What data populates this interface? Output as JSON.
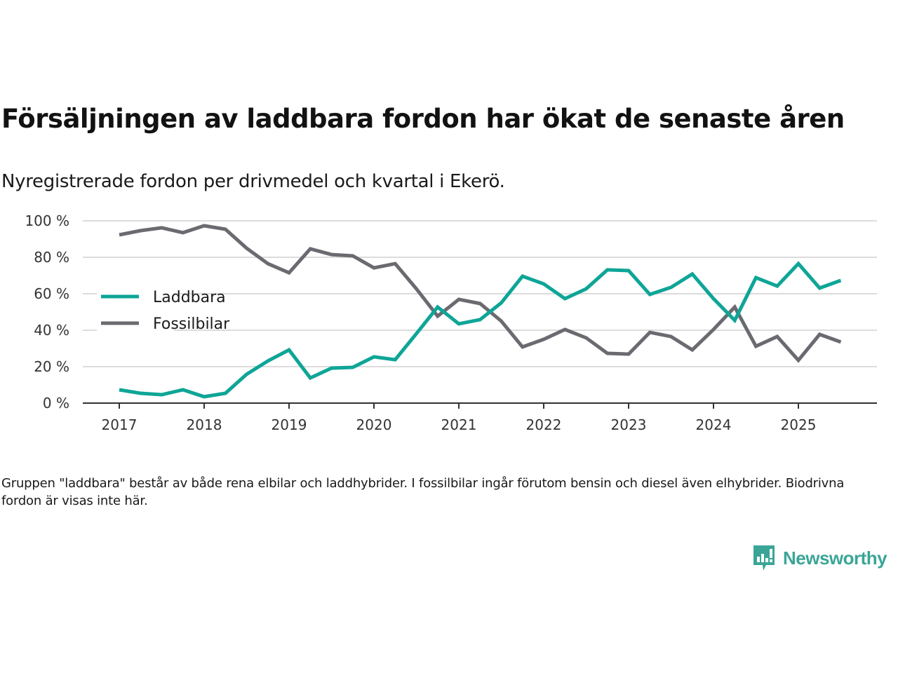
{
  "header": {
    "title": "Försäljningen av laddbara fordon har ökat de senaste åren",
    "subtitle": "Nyregistrerade fordon per drivmedel och kvartal i Ekerö."
  },
  "note": "Gruppen \"laddbara\" består av både rena elbilar och laddhybrider. I fossilbilar ingår förutom bensin och diesel även elhybrider. Biodrivna fordon är visas inte här.",
  "brand": {
    "name": "Newsworthy",
    "color": "#3aa597"
  },
  "chart_data": {
    "type": "line",
    "title": "Försäljningen av laddbara fordon har ökat de senaste åren",
    "subtitle": "Nyregistrerade fordon per drivmedel och kvartal i Ekerö.",
    "xlabel": "",
    "ylabel": "",
    "x_start": 2017.0,
    "x_step": 0.25,
    "xlim": [
      2016.6,
      2026.0
    ],
    "ylim": [
      0,
      100
    ],
    "x_ticks": [
      2017,
      2018,
      2019,
      2020,
      2021,
      2022,
      2023,
      2024,
      2025
    ],
    "x_tick_labels": [
      "2017",
      "2018",
      "2019",
      "2020",
      "2021",
      "2022",
      "2023",
      "2024",
      "2025"
    ],
    "y_ticks": [
      0,
      20,
      40,
      60,
      80,
      100
    ],
    "y_tick_labels": [
      "0 %",
      "20 %",
      "40 %",
      "60 %",
      "80 %",
      "100 %"
    ],
    "grid": true,
    "legend_position": "left",
    "series": [
      {
        "name": "Laddbara",
        "color": "#0ea597",
        "values": [
          7.3,
          5.4,
          4.6,
          7.3,
          3.5,
          5.4,
          15.8,
          23.1,
          29.2,
          13.8,
          19.2,
          19.6,
          25.4,
          23.8,
          38.1,
          52.7,
          43.5,
          45.8,
          55.0,
          69.6,
          65.4,
          57.3,
          62.7,
          73.1,
          72.7,
          59.6,
          63.5,
          70.8,
          57.3,
          45.4,
          68.8,
          64.2,
          76.5,
          63.1,
          67.3
        ]
      },
      {
        "name": "Fossilbilar",
        "color": "#6b6a70",
        "values": [
          92.3,
          94.6,
          96.2,
          93.5,
          97.3,
          95.4,
          85.0,
          76.5,
          71.5,
          84.6,
          81.5,
          80.8,
          74.2,
          76.5,
          62.7,
          47.7,
          56.9,
          54.6,
          45.0,
          30.8,
          35.0,
          40.4,
          35.8,
          27.3,
          26.9,
          38.8,
          36.5,
          29.2,
          40.4,
          52.7,
          31.2,
          36.5,
          23.5,
          37.7,
          33.5
        ]
      }
    ]
  }
}
